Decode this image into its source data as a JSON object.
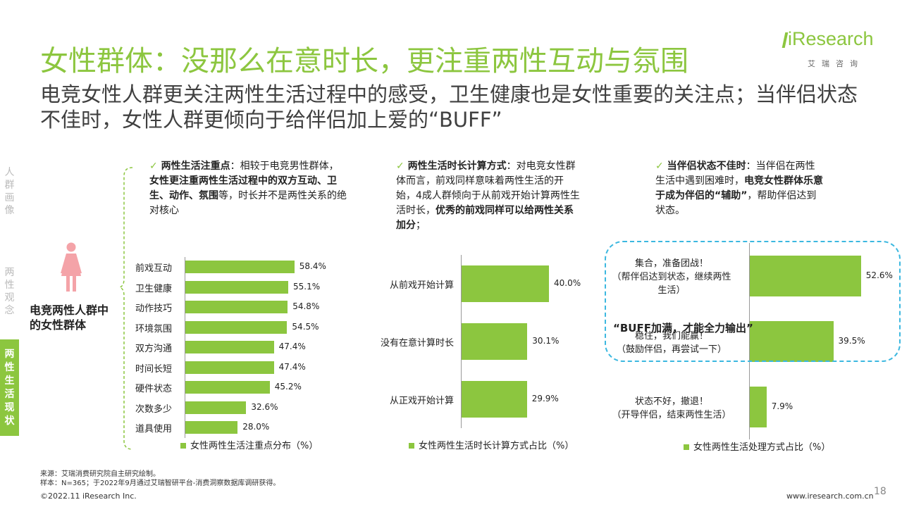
{
  "header": {
    "title": "女性群体：没那么在意时长，更注重两性互动与氛围",
    "subtitle": "电竞女性人群更关注两性生活过程中的感受，卫生健康也是女性重要的关注点；当伴侣状态不佳时，女性人群更倾向于给伴侣加上爱的“BUFF”",
    "logo_word": "iResearch",
    "logo_cn": "艾瑞咨询"
  },
  "sidebar": {
    "items": [
      {
        "label": "人群画像",
        "active": false
      },
      {
        "label": "两性观念",
        "active": false
      },
      {
        "label": "两性生活现状",
        "active": true
      }
    ]
  },
  "left_panel": {
    "person_icon": "female-person-icon",
    "person_label": "电竞两性人群中的女性群体"
  },
  "notes": {
    "n1_head": "两性生活注重点",
    "n1_a": "：相较于电竞男性群体，",
    "n1_b": "女性更注重两性生活过程中的双方互动、卫生、动作、氛围",
    "n1_c": "等，时长并不是两性关系的绝对核心",
    "n2_head": "两性生活时长计算方式",
    "n2_a": "：对电竞女性群体而言，前戏同样意味着两性生活的开始，4成人群倾向于从前戏开始计算两性生活时长，",
    "n2_b": "优秀的前戏同样可以给两性关系加分",
    "n2_c": "；",
    "n3_head": "当伴侣状态不佳时",
    "n3_a": "：当伴侣在两性生活中遇到困难时，",
    "n3_b": "电竞女性群体乐意于成为伴侣的“辅助”",
    "n3_c": "，帮助伴侣达到状态。"
  },
  "chart_data": [
    {
      "type": "bar",
      "orientation": "horizontal",
      "categories": [
        "前戏互动",
        "卫生健康",
        "动作技巧",
        "环境氛围",
        "双方沟通",
        "时间长短",
        "硬件状态",
        "次数多少",
        "道具使用"
      ],
      "values": [
        58.4,
        55.1,
        54.8,
        54.5,
        47.4,
        47.4,
        45.2,
        32.6,
        28.0
      ],
      "labels": [
        "58.4%",
        "55.1%",
        "54.8%",
        "54.5%",
        "47.4%",
        "47.4%",
        "45.2%",
        "32.6%",
        "28.0%"
      ],
      "legend": "女性两性生活注重点分布（%）",
      "color": "#8cc63f"
    },
    {
      "type": "bar",
      "orientation": "horizontal",
      "categories": [
        "从前戏开始计算",
        "没有在意计算时长",
        "从正戏开始计算"
      ],
      "values": [
        40.0,
        30.1,
        29.9
      ],
      "labels": [
        "40.0%",
        "30.1%",
        "29.9%"
      ],
      "legend": "女性两性生活时长计算方式占比（%）",
      "color": "#8cc63f"
    },
    {
      "type": "bar",
      "orientation": "horizontal",
      "categories": [
        [
          "集合，准备团战！",
          "（帮伴侣达到状态，继续两性",
          "生活）"
        ],
        [
          "稳住，我们能赢！",
          "（鼓励伴侣，再尝试一下）"
        ],
        [
          "状态不好，撤退！",
          "（开导伴侣，结束两性生活）"
        ]
      ],
      "values": [
        52.6,
        39.5,
        7.9
      ],
      "labels": [
        "52.6%",
        "39.5%",
        "7.9%"
      ],
      "legend": "女性两性生活处理方式占比（%）",
      "callout": "“BUFF加满，才能全力输出”",
      "color": "#8cc63f"
    }
  ],
  "footer": {
    "source": "来源：艾瑞消费研究院自主研究绘制。",
    "sample": "样本：N=365；于2022年9月通过艾瑞智研平台-消费洞察数据库调研获得。",
    "copyright": "©2022.11 iResearch Inc.",
    "url": "www.iresearch.com.cn",
    "page": "18"
  }
}
